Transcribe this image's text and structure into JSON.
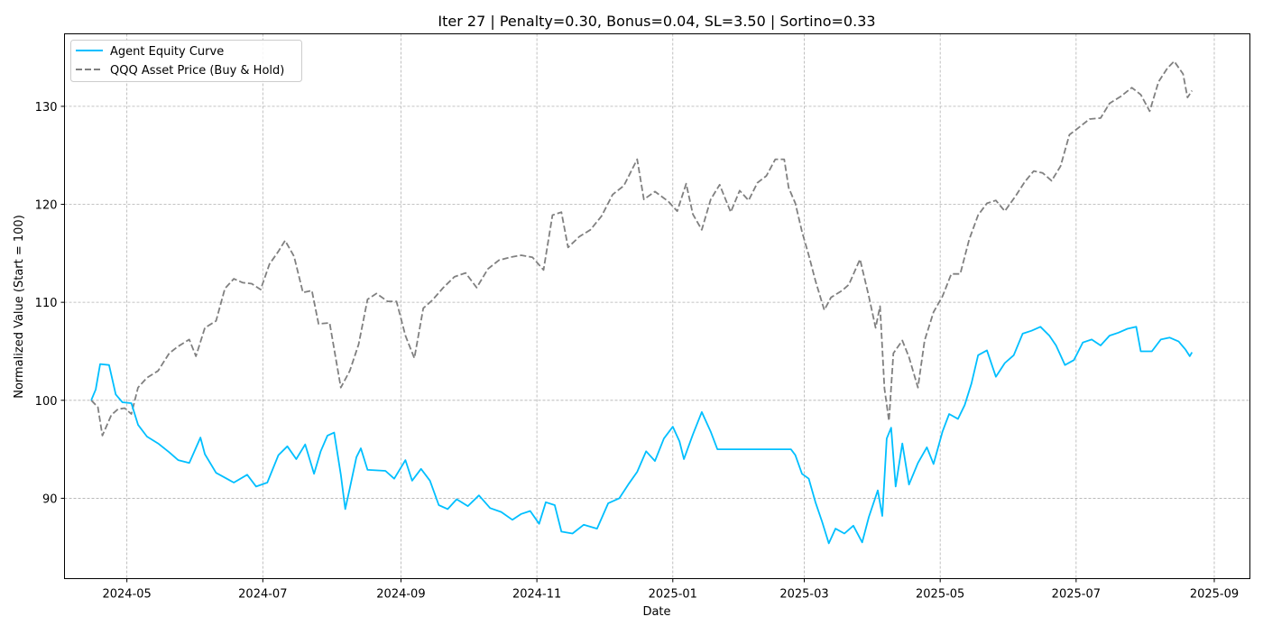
{
  "chart_data": {
    "type": "line",
    "title": "Iter 27 | Penalty=0.30, Bonus=0.04, SL=3.50 | Sortino=0.33",
    "xlabel": "Date",
    "ylabel": "Normalized Value (Start = 100)",
    "xlim": [
      "2024-04-03",
      "2025-09-17"
    ],
    "ylim": [
      81.8,
      137.4
    ],
    "grid": true,
    "legend": "top-left",
    "x_ticks": [
      "2024-05",
      "2024-07",
      "2024-09",
      "2024-11",
      "2025-01",
      "2025-03",
      "2025-05",
      "2025-07",
      "2025-09"
    ],
    "y_ticks": [
      90,
      100,
      110,
      120,
      130
    ],
    "series": [
      {
        "name": "Agent Equity Curve",
        "color": "#00bfff",
        "style": "solid",
        "points": [
          [
            "2024-04-15",
            100.0
          ],
          [
            "2024-04-17",
            101.1
          ],
          [
            "2024-04-19",
            103.7
          ],
          [
            "2024-04-23",
            103.6
          ],
          [
            "2024-04-26",
            100.6
          ],
          [
            "2024-04-29",
            99.8
          ],
          [
            "2024-05-03",
            99.7
          ],
          [
            "2024-05-06",
            97.5
          ],
          [
            "2024-05-10",
            96.3
          ],
          [
            "2024-05-15",
            95.6
          ],
          [
            "2024-05-20",
            94.7
          ],
          [
            "2024-05-24",
            93.9
          ],
          [
            "2024-05-29",
            93.6
          ],
          [
            "2024-06-03",
            96.2
          ],
          [
            "2024-06-05",
            94.5
          ],
          [
            "2024-06-10",
            92.6
          ],
          [
            "2024-06-14",
            92.1
          ],
          [
            "2024-06-18",
            91.6
          ],
          [
            "2024-06-24",
            92.4
          ],
          [
            "2024-06-28",
            91.2
          ],
          [
            "2024-07-03",
            91.6
          ],
          [
            "2024-07-08",
            94.4
          ],
          [
            "2024-07-12",
            95.3
          ],
          [
            "2024-07-16",
            94.0
          ],
          [
            "2024-07-20",
            95.5
          ],
          [
            "2024-07-24",
            92.5
          ],
          [
            "2024-07-27",
            94.8
          ],
          [
            "2024-07-30",
            96.4
          ],
          [
            "2024-08-02",
            96.7
          ],
          [
            "2024-08-05",
            92.4
          ],
          [
            "2024-08-07",
            88.9
          ],
          [
            "2024-08-09",
            91.0
          ],
          [
            "2024-08-12",
            94.2
          ],
          [
            "2024-08-14",
            95.1
          ],
          [
            "2024-08-17",
            92.9
          ],
          [
            "2024-08-25",
            92.8
          ],
          [
            "2024-08-29",
            92.0
          ],
          [
            "2024-09-03",
            93.9
          ],
          [
            "2024-09-06",
            91.8
          ],
          [
            "2024-09-10",
            93.0
          ],
          [
            "2024-09-14",
            91.8
          ],
          [
            "2024-09-18",
            89.3
          ],
          [
            "2024-09-22",
            88.9
          ],
          [
            "2024-09-26",
            89.9
          ],
          [
            "2024-10-01",
            89.2
          ],
          [
            "2024-10-06",
            90.3
          ],
          [
            "2024-10-11",
            89.0
          ],
          [
            "2024-10-16",
            88.6
          ],
          [
            "2024-10-21",
            87.8
          ],
          [
            "2024-10-25",
            88.4
          ],
          [
            "2024-10-29",
            88.7
          ],
          [
            "2024-11-02",
            87.4
          ],
          [
            "2024-11-05",
            89.6
          ],
          [
            "2024-11-09",
            89.3
          ],
          [
            "2024-11-12",
            86.6
          ],
          [
            "2024-11-17",
            86.4
          ],
          [
            "2024-11-22",
            87.3
          ],
          [
            "2024-11-28",
            86.9
          ],
          [
            "2024-12-03",
            89.5
          ],
          [
            "2024-12-08",
            90.0
          ],
          [
            "2024-12-12",
            91.4
          ],
          [
            "2024-12-16",
            92.7
          ],
          [
            "2024-12-20",
            94.8
          ],
          [
            "2024-12-24",
            93.8
          ],
          [
            "2024-12-28",
            96.1
          ],
          [
            "2025-01-01",
            97.3
          ],
          [
            "2025-01-04",
            95.8
          ],
          [
            "2025-01-06",
            94.0
          ],
          [
            "2025-01-10",
            96.5
          ],
          [
            "2025-01-14",
            98.8
          ],
          [
            "2025-01-18",
            96.8
          ],
          [
            "2025-01-21",
            95.0
          ],
          [
            "2025-02-23",
            95.0
          ],
          [
            "2025-02-25",
            94.4
          ],
          [
            "2025-02-28",
            92.5
          ],
          [
            "2025-03-03",
            92.0
          ],
          [
            "2025-03-06",
            89.6
          ],
          [
            "2025-03-09",
            87.6
          ],
          [
            "2025-03-12",
            85.4
          ],
          [
            "2025-03-15",
            86.9
          ],
          [
            "2025-03-19",
            86.4
          ],
          [
            "2025-03-23",
            87.2
          ],
          [
            "2025-03-27",
            85.5
          ],
          [
            "2025-03-30",
            88.1
          ],
          [
            "2025-04-03",
            90.8
          ],
          [
            "2025-04-05",
            88.2
          ],
          [
            "2025-04-07",
            96.1
          ],
          [
            "2025-04-09",
            97.2
          ],
          [
            "2025-04-11",
            91.2
          ],
          [
            "2025-04-14",
            95.6
          ],
          [
            "2025-04-17",
            91.4
          ],
          [
            "2025-04-21",
            93.6
          ],
          [
            "2025-04-25",
            95.2
          ],
          [
            "2025-04-28",
            93.5
          ],
          [
            "2025-05-02",
            96.8
          ],
          [
            "2025-05-05",
            98.6
          ],
          [
            "2025-05-09",
            98.1
          ],
          [
            "2025-05-12",
            99.5
          ],
          [
            "2025-05-15",
            101.7
          ],
          [
            "2025-05-18",
            104.6
          ],
          [
            "2025-05-22",
            105.1
          ],
          [
            "2025-05-26",
            102.4
          ],
          [
            "2025-05-30",
            103.8
          ],
          [
            "2025-06-03",
            104.6
          ],
          [
            "2025-06-07",
            106.8
          ],
          [
            "2025-06-11",
            107.1
          ],
          [
            "2025-06-15",
            107.5
          ],
          [
            "2025-06-19",
            106.6
          ],
          [
            "2025-06-22",
            105.6
          ],
          [
            "2025-06-26",
            103.6
          ],
          [
            "2025-06-30",
            104.1
          ],
          [
            "2025-07-04",
            105.9
          ],
          [
            "2025-07-08",
            106.2
          ],
          [
            "2025-07-12",
            105.6
          ],
          [
            "2025-07-16",
            106.6
          ],
          [
            "2025-07-20",
            106.9
          ],
          [
            "2025-07-24",
            107.3
          ],
          [
            "2025-07-28",
            107.5
          ],
          [
            "2025-07-30",
            105.0
          ],
          [
            "2025-08-04",
            105.0
          ],
          [
            "2025-08-08",
            106.2
          ],
          [
            "2025-08-12",
            106.4
          ],
          [
            "2025-08-16",
            106.0
          ],
          [
            "2025-08-19",
            105.2
          ],
          [
            "2025-08-21",
            104.5
          ],
          [
            "2025-08-22",
            104.9
          ]
        ]
      },
      {
        "name": "QQQ Asset Price (Buy & Hold)",
        "color": "#808080",
        "style": "dashed",
        "points": [
          [
            "2024-04-15",
            100.0
          ],
          [
            "2024-04-18",
            99.3
          ],
          [
            "2024-04-20",
            96.4
          ],
          [
            "2024-04-24",
            98.5
          ],
          [
            "2024-04-27",
            99.1
          ],
          [
            "2024-04-30",
            99.2
          ],
          [
            "2024-05-03",
            98.6
          ],
          [
            "2024-05-06",
            101.3
          ],
          [
            "2024-05-10",
            102.3
          ],
          [
            "2024-05-15",
            103.0
          ],
          [
            "2024-05-20",
            104.8
          ],
          [
            "2024-05-24",
            105.5
          ],
          [
            "2024-05-29",
            106.2
          ],
          [
            "2024-06-01",
            104.5
          ],
          [
            "2024-06-05",
            107.4
          ],
          [
            "2024-06-10",
            108.1
          ],
          [
            "2024-06-14",
            111.4
          ],
          [
            "2024-06-18",
            112.4
          ],
          [
            "2024-06-22",
            112.0
          ],
          [
            "2024-06-26",
            111.9
          ],
          [
            "2024-06-30",
            111.3
          ],
          [
            "2024-07-04",
            113.9
          ],
          [
            "2024-07-08",
            115.2
          ],
          [
            "2024-07-11",
            116.3
          ],
          [
            "2024-07-15",
            114.7
          ],
          [
            "2024-07-19",
            111.0
          ],
          [
            "2024-07-23",
            111.2
          ],
          [
            "2024-07-26",
            107.8
          ],
          [
            "2024-07-31",
            107.9
          ],
          [
            "2024-08-05",
            101.3
          ],
          [
            "2024-08-09",
            103.0
          ],
          [
            "2024-08-13",
            105.7
          ],
          [
            "2024-08-17",
            110.3
          ],
          [
            "2024-08-21",
            110.9
          ],
          [
            "2024-08-26",
            110.1
          ],
          [
            "2024-08-30",
            110.1
          ],
          [
            "2024-09-03",
            106.6
          ],
          [
            "2024-09-07",
            104.3
          ],
          [
            "2024-09-11",
            109.4
          ],
          [
            "2024-09-15",
            110.2
          ],
          [
            "2024-09-20",
            111.5
          ],
          [
            "2024-09-25",
            112.6
          ],
          [
            "2024-09-30",
            113.0
          ],
          [
            "2024-10-05",
            111.5
          ],
          [
            "2024-10-10",
            113.4
          ],
          [
            "2024-10-15",
            114.3
          ],
          [
            "2024-10-20",
            114.6
          ],
          [
            "2024-10-25",
            114.8
          ],
          [
            "2024-10-30",
            114.6
          ],
          [
            "2024-11-04",
            113.3
          ],
          [
            "2024-11-08",
            118.9
          ],
          [
            "2024-11-12",
            119.2
          ],
          [
            "2024-11-15",
            115.6
          ],
          [
            "2024-11-20",
            116.7
          ],
          [
            "2024-11-25",
            117.4
          ],
          [
            "2024-11-30",
            118.8
          ],
          [
            "2024-12-05",
            121.0
          ],
          [
            "2024-12-10",
            121.9
          ],
          [
            "2024-12-16",
            124.6
          ],
          [
            "2024-12-19",
            120.5
          ],
          [
            "2024-12-24",
            121.3
          ],
          [
            "2024-12-30",
            120.3
          ],
          [
            "2025-01-03",
            119.3
          ],
          [
            "2025-01-07",
            122.1
          ],
          [
            "2025-01-10",
            119.0
          ],
          [
            "2025-01-14",
            117.4
          ],
          [
            "2025-01-18",
            120.5
          ],
          [
            "2025-01-22",
            122.0
          ],
          [
            "2025-01-27",
            119.2
          ],
          [
            "2025-01-31",
            121.4
          ],
          [
            "2025-02-04",
            120.4
          ],
          [
            "2025-02-08",
            122.2
          ],
          [
            "2025-02-12",
            122.9
          ],
          [
            "2025-02-16",
            124.6
          ],
          [
            "2025-02-20",
            124.6
          ],
          [
            "2025-02-22",
            121.7
          ],
          [
            "2025-02-25",
            120.1
          ],
          [
            "2025-02-28",
            117.2
          ],
          [
            "2025-03-03",
            114.8
          ],
          [
            "2025-03-06",
            112.2
          ],
          [
            "2025-03-10",
            109.2
          ],
          [
            "2025-03-13",
            110.5
          ],
          [
            "2025-03-18",
            111.2
          ],
          [
            "2025-03-21",
            111.8
          ],
          [
            "2025-03-26",
            114.4
          ],
          [
            "2025-03-30",
            110.6
          ],
          [
            "2025-04-02",
            107.4
          ],
          [
            "2025-04-04",
            109.6
          ],
          [
            "2025-04-06",
            101.2
          ],
          [
            "2025-04-08",
            97.9
          ],
          [
            "2025-04-10",
            104.8
          ],
          [
            "2025-04-14",
            106.1
          ],
          [
            "2025-04-17",
            104.4
          ],
          [
            "2025-04-21",
            101.3
          ],
          [
            "2025-04-24",
            106.1
          ],
          [
            "2025-04-28",
            109.0
          ],
          [
            "2025-05-02",
            110.6
          ],
          [
            "2025-05-06",
            112.9
          ],
          [
            "2025-05-10",
            112.9
          ],
          [
            "2025-05-14",
            116.4
          ],
          [
            "2025-05-18",
            118.9
          ],
          [
            "2025-05-22",
            120.1
          ],
          [
            "2025-05-26",
            120.4
          ],
          [
            "2025-05-30",
            119.3
          ],
          [
            "2025-06-04",
            120.9
          ],
          [
            "2025-06-08",
            122.3
          ],
          [
            "2025-06-12",
            123.4
          ],
          [
            "2025-06-16",
            123.2
          ],
          [
            "2025-06-20",
            122.4
          ],
          [
            "2025-06-24",
            123.9
          ],
          [
            "2025-06-28",
            127.1
          ],
          [
            "2025-07-02",
            127.8
          ],
          [
            "2025-07-07",
            128.7
          ],
          [
            "2025-07-12",
            128.8
          ],
          [
            "2025-07-16",
            130.3
          ],
          [
            "2025-07-21",
            131.0
          ],
          [
            "2025-07-26",
            131.9
          ],
          [
            "2025-07-30",
            131.2
          ],
          [
            "2025-08-03",
            129.5
          ],
          [
            "2025-08-07",
            132.5
          ],
          [
            "2025-08-11",
            133.9
          ],
          [
            "2025-08-14",
            134.6
          ],
          [
            "2025-08-18",
            133.3
          ],
          [
            "2025-08-20",
            130.9
          ],
          [
            "2025-08-22",
            131.6
          ]
        ]
      }
    ]
  }
}
